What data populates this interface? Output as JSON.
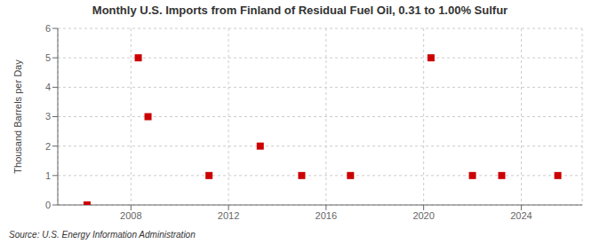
{
  "chart_data": {
    "type": "scatter",
    "title": "Monthly U.S. Imports from Finland of Residual Fuel Oil, 0.31 to 1.00% Sulfur",
    "y_label": "Thousand Barrels per Day",
    "annotations": [
      "Source: U.S. Energy Information Administration"
    ],
    "x": [
      2006.2,
      2008.3,
      2008.7,
      2011.2,
      2013.3,
      2015.0,
      2017.0,
      2020.3,
      2022.0,
      2023.2,
      2025.5
    ],
    "values": [
      0,
      5,
      3,
      1,
      2,
      1,
      1,
      5,
      1,
      1,
      1
    ],
    "color": "#cc0000",
    "marker": "square",
    "xlim": [
      2005.0,
      2026.5
    ],
    "xticks": [
      2008,
      2012,
      2016,
      2020,
      2024
    ],
    "ylim": [
      0,
      6
    ],
    "yticks": [
      0,
      1,
      2,
      3,
      4,
      5,
      6
    ],
    "grid": true
  }
}
